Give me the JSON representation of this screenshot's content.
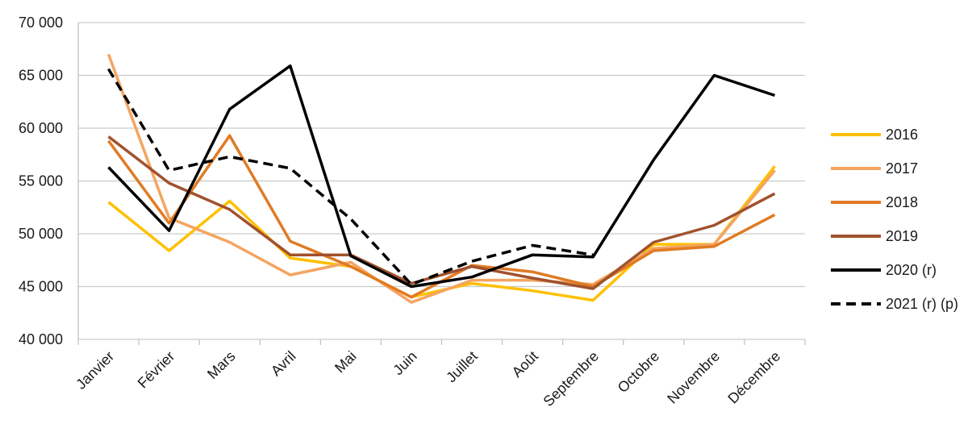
{
  "chart_data": {
    "type": "line",
    "title": "",
    "xlabel": "",
    "ylabel": "",
    "categories": [
      "Janvier",
      "Février",
      "Mars",
      "Avril",
      "Mai",
      "Juin",
      "Juillet",
      "Août",
      "Septembre",
      "Octobre",
      "Novembre",
      "Décembre"
    ],
    "ylim": [
      40000,
      70000
    ],
    "yticks": [
      40000,
      45000,
      50000,
      55000,
      60000,
      65000,
      70000
    ],
    "ytick_labels": [
      "40 000",
      "45 000",
      "50 000",
      "55 000",
      "60 000",
      "65 000",
      "70 000"
    ],
    "grid": true,
    "legend_position": "right",
    "series": [
      {
        "name": "2016",
        "color": "#FFC000",
        "dash": false,
        "values": [
          53000,
          48400,
          53100,
          47700,
          46900,
          44000,
          45300,
          44600,
          43700,
          49000,
          49000,
          56400
        ]
      },
      {
        "name": "2017",
        "color": "#F4A460",
        "dash": false,
        "values": [
          67000,
          51500,
          49200,
          46100,
          47300,
          43500,
          45600,
          45600,
          45200,
          48600,
          49000,
          56000
        ]
      },
      {
        "name": "2018",
        "color": "#E07B24",
        "dash": false,
        "values": [
          58800,
          51000,
          59300,
          49300,
          46900,
          44000,
          47000,
          46400,
          45000,
          48400,
          48800,
          51800
        ]
      },
      {
        "name": "2019",
        "color": "#A0522D",
        "dash": false,
        "values": [
          59200,
          54800,
          52300,
          48000,
          48000,
          45300,
          46900,
          45800,
          44800,
          49200,
          50800,
          53800
        ]
      },
      {
        "name": "2020 (r)",
        "color": "#000000",
        "dash": false,
        "values": [
          56300,
          50300,
          61800,
          65900,
          47900,
          45000,
          45900,
          48000,
          47800,
          57000,
          65000,
          63100
        ]
      },
      {
        "name": "2021 (r) (p)",
        "color": "#000000",
        "dash": true,
        "values": [
          65600,
          56000,
          57300,
          56200,
          51400,
          45200,
          47400,
          48900,
          48000,
          null,
          null,
          null
        ]
      }
    ]
  }
}
